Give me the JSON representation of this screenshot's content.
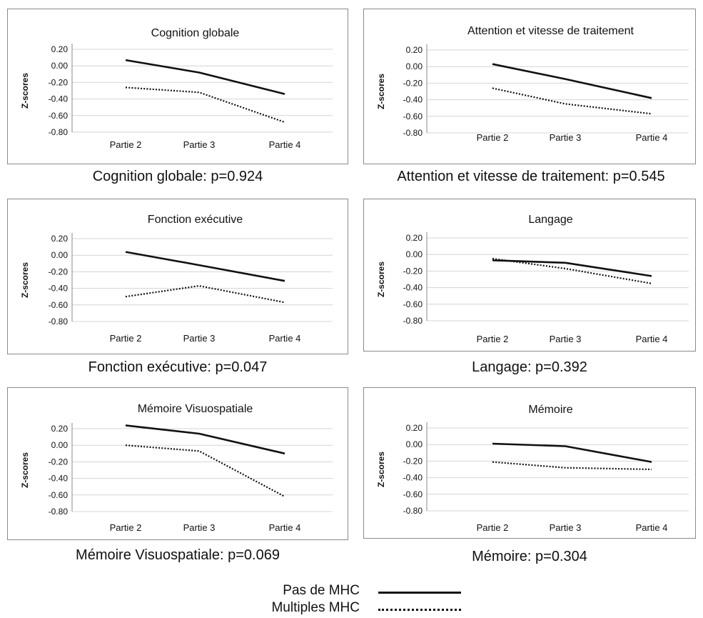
{
  "legend": {
    "solid_label": "Pas de MHC",
    "dotted_label": "Multiples MHC"
  },
  "axis": {
    "ylabel": "Z-scores",
    "ticks": [
      "0.20",
      "0.00",
      "-0.20",
      "-0.40",
      "-0.60",
      "-0.80"
    ]
  },
  "captions": [
    "Cognition globale: p=0.924",
    "Attention et vitesse de traitement: p=0.545",
    "Fonction exécutive: p=0.047",
    "Langage: p=0.392",
    "Mémoire Visuospatiale: p=0.069",
    "Mémoire: p=0.304"
  ],
  "chart_data": [
    {
      "type": "line",
      "title": "Cognition globale",
      "ylabel": "Z-scores",
      "categories": [
        "Partie 2",
        "Partie 3",
        "Partie 4"
      ],
      "ylim": [
        -0.8,
        0.2
      ],
      "grid": true,
      "series": [
        {
          "name": "Pas de MHC",
          "style": "solid",
          "values": [
            0.07,
            -0.08,
            -0.34
          ]
        },
        {
          "name": "Multiples MHC",
          "style": "dotted",
          "values": [
            -0.26,
            -0.32,
            -0.68
          ]
        }
      ]
    },
    {
      "type": "line",
      "title": "Attention et vitesse de traitement",
      "ylabel": "Z-scores",
      "categories": [
        "Partie 2",
        "Partie 3",
        "Partie 4"
      ],
      "ylim": [
        -0.8,
        0.2
      ],
      "grid": true,
      "series": [
        {
          "name": "Pas de MHC",
          "style": "solid",
          "values": [
            0.03,
            -0.15,
            -0.38
          ]
        },
        {
          "name": "Multiples MHC",
          "style": "dotted",
          "values": [
            -0.26,
            -0.45,
            -0.57
          ]
        }
      ]
    },
    {
      "type": "line",
      "title": "Fonction exécutive",
      "ylabel": "Z-scores",
      "categories": [
        "Partie 2",
        "Partie 3",
        "Partie 4"
      ],
      "ylim": [
        -0.8,
        0.2
      ],
      "grid": true,
      "series": [
        {
          "name": "Pas de MHC",
          "style": "solid",
          "values": [
            0.04,
            -0.12,
            -0.31
          ]
        },
        {
          "name": "Multiples MHC",
          "style": "dotted",
          "values": [
            -0.5,
            -0.37,
            -0.57
          ]
        }
      ]
    },
    {
      "type": "line",
      "title": "Langage",
      "ylabel": "Z-scores",
      "categories": [
        "Partie 2",
        "Partie 3",
        "Partie 4"
      ],
      "ylim": [
        -0.8,
        0.2
      ],
      "grid": true,
      "series": [
        {
          "name": "Pas de MHC",
          "style": "solid",
          "values": [
            -0.07,
            -0.1,
            -0.26
          ]
        },
        {
          "name": "Multiples MHC",
          "style": "dotted",
          "values": [
            -0.05,
            -0.17,
            -0.35
          ]
        }
      ]
    },
    {
      "type": "line",
      "title": "Mémoire  Visuospatiale",
      "ylabel": "Z-scores",
      "categories": [
        "Partie 2",
        "Partie 3",
        "Partie 4"
      ],
      "ylim": [
        -0.8,
        0.2
      ],
      "grid": true,
      "series": [
        {
          "name": "Pas de MHC",
          "style": "solid",
          "values": [
            0.24,
            0.14,
            -0.1
          ]
        },
        {
          "name": "Multiples MHC",
          "style": "dotted",
          "values": [
            0.0,
            -0.07,
            -0.62
          ]
        }
      ]
    },
    {
      "type": "line",
      "title": "Mémoire",
      "ylabel": "Z-scores",
      "categories": [
        "Partie 2",
        "Partie 3",
        "Partie 4"
      ],
      "ylim": [
        -0.8,
        0.2
      ],
      "grid": true,
      "series": [
        {
          "name": "Pas de MHC",
          "style": "solid",
          "values": [
            0.01,
            -0.02,
            -0.21
          ]
        },
        {
          "name": "Multiples MHC",
          "style": "dotted",
          "values": [
            -0.21,
            -0.28,
            -0.3
          ]
        }
      ]
    }
  ]
}
